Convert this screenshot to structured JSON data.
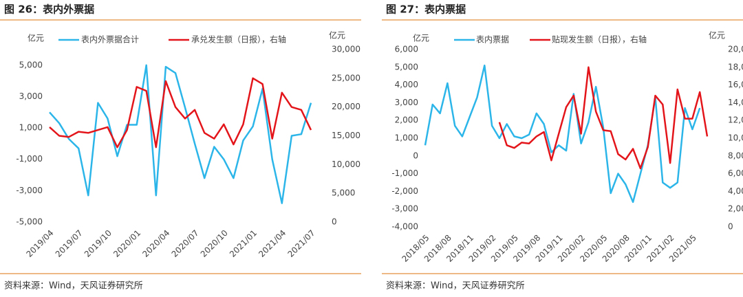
{
  "chart_data": [
    {
      "type": "line",
      "title": "图 26：表内外票据",
      "source": "资料来源：Wind，天风证券研究所",
      "y_label": "亿元",
      "y2_label": "亿元",
      "categories": [
        "2019/04",
        null,
        null,
        "2019/07",
        null,
        null,
        "2019/10",
        null,
        null,
        "2020/01",
        null,
        null,
        "2020/04",
        null,
        null,
        "2020/07",
        null,
        null,
        "2020/10",
        null,
        null,
        "2021/01",
        null,
        null,
        "2021/04",
        null,
        null,
        "2021/07"
      ],
      "series": [
        {
          "name": "表内外票据合计",
          "color": "#2bb5e8",
          "values": [
            2000,
            1300,
            300,
            -300,
            -3300,
            2600,
            1600,
            -800,
            1200,
            1200,
            5000,
            -3300,
            4900,
            4500,
            2300,
            0,
            -2200,
            -200,
            -1000,
            -2200,
            200,
            1100,
            3500,
            -1000,
            -3800,
            500,
            600,
            2600
          ]
        },
        {
          "name": "承兑发生额（日报），右轴",
          "color": "#e3151a",
          "axis": "y2",
          "values": [
            16500,
            15000,
            14800,
            15700,
            15500,
            16000,
            16500,
            13000,
            16000,
            23500,
            22800,
            13000,
            24500,
            20000,
            18000,
            19500,
            15500,
            14500,
            17000,
            13500,
            17000,
            25000,
            24000,
            14500,
            22500,
            20000,
            19500,
            16000
          ]
        }
      ],
      "ylim": [
        -5000,
        6000
      ],
      "yticks": [
        {
          "value": -5000,
          "label": "-5,000"
        },
        {
          "value": -3000,
          "label": "-3,000"
        },
        {
          "value": -1000,
          "label": "-1,000"
        },
        {
          "value": 1000,
          "label": "1,000"
        },
        {
          "value": 3000,
          "label": "3,000"
        },
        {
          "value": 5000,
          "label": "5,000"
        }
      ],
      "y2lim": [
        0,
        30000
      ],
      "y2ticks": [
        0,
        {
          "value": 5000,
          "label": "5,000"
        },
        {
          "value": 10000,
          "label": "10,000"
        },
        {
          "value": 15000,
          "label": "15,000"
        },
        {
          "value": 20000,
          "label": "20,000"
        },
        {
          "value": 25000,
          "label": "25,000"
        },
        {
          "value": 30000,
          "label": "30,000"
        }
      ]
    },
    {
      "type": "line",
      "title": "图 27：表内票据",
      "source": "资料来源：Wind，天风证券研究所",
      "y_label": "亿元",
      "y2_label": "亿元",
      "categories": [
        "2018/05",
        null,
        null,
        "2018/08",
        null,
        null,
        "2018/11",
        null,
        null,
        "2019/02",
        null,
        null,
        "2019/05",
        null,
        null,
        "2019/08",
        null,
        null,
        "2019/11",
        null,
        null,
        "2020/02",
        null,
        null,
        "2020/05",
        null,
        null,
        "2020/08",
        null,
        null,
        "2020/11",
        null,
        null,
        "2021/02",
        null,
        null,
        "2021/05",
        null,
        null
      ],
      "series": [
        {
          "name": "表内票据",
          "color": "#2bb5e8",
          "values": [
            600,
            2900,
            2400,
            4100,
            1700,
            1100,
            2200,
            3300,
            5100,
            1700,
            1000,
            1800,
            1100,
            1000,
            1200,
            2400,
            1800,
            200,
            600,
            300,
            3500,
            700,
            1900,
            3900,
            1600,
            -2100,
            -1000,
            -1600,
            -2600,
            -1000,
            600,
            3300,
            -1500,
            -1800,
            -1500,
            2700,
            1500,
            2700,
            null
          ]
        },
        {
          "name": "贴现发生额（日报），右轴",
          "color": "#e3151a",
          "axis": "y2",
          "values": [
            null,
            null,
            null,
            null,
            null,
            null,
            null,
            null,
            null,
            null,
            11800,
            9200,
            8900,
            9500,
            9400,
            10200,
            10700,
            7500,
            10500,
            13500,
            14800,
            10500,
            18000,
            13000,
            10900,
            10800,
            8200,
            7600,
            8800,
            6600,
            9000,
            14800,
            13800,
            7200,
            15500,
            12200,
            12200,
            15200,
            10200
          ]
        }
      ],
      "ylim": [
        -4000,
        6000
      ],
      "yticks": [
        {
          "value": -4000,
          "label": "-4,000"
        },
        {
          "value": -3000,
          "label": "-3,000"
        },
        {
          "value": -2000,
          "label": "-2,000"
        },
        {
          "value": -1000,
          "label": "-1,000"
        },
        0,
        {
          "value": 1000,
          "label": "1,000"
        },
        {
          "value": 2000,
          "label": "2,000"
        },
        {
          "value": 3000,
          "label": "3,000"
        },
        {
          "value": 4000,
          "label": "4,000"
        },
        {
          "value": 5000,
          "label": "5,000"
        },
        {
          "value": 6000,
          "label": "6,000"
        }
      ],
      "y2lim": [
        0,
        20000
      ],
      "y2ticks": [
        0,
        {
          "value": 2000,
          "label": "2,000"
        },
        {
          "value": 4000,
          "label": "4,000"
        },
        {
          "value": 6000,
          "label": "6,000"
        },
        {
          "value": 8000,
          "label": "8,000"
        },
        {
          "value": 10000,
          "label": "10,000"
        },
        {
          "value": 12000,
          "label": "12,000"
        },
        {
          "value": 14000,
          "label": "14,000"
        },
        {
          "value": 16000,
          "label": "16,000"
        },
        {
          "value": 18000,
          "label": "18,000"
        },
        {
          "value": 20000,
          "label": "20,000"
        }
      ]
    }
  ]
}
